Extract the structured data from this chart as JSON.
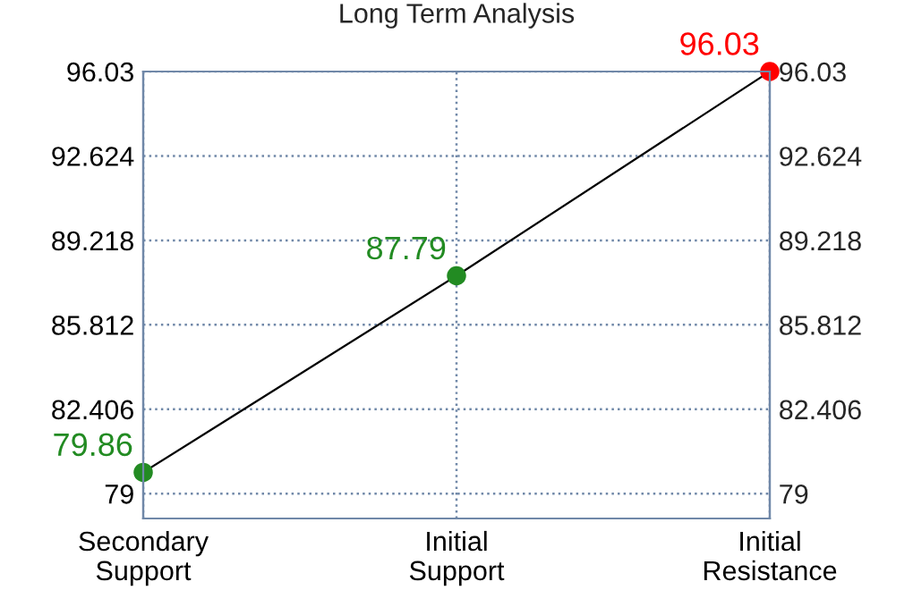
{
  "chart_data": {
    "type": "line",
    "title": "Long Term Analysis",
    "categories": [
      "Secondary\nSupport",
      "Initial\nSupport",
      "Initial\nResistance"
    ],
    "values": [
      79.86,
      87.79,
      96.03
    ],
    "color": "#000000",
    "colors": [
      "#228b22",
      "#228b22",
      "#ff0000"
    ],
    "marker": "circle",
    "data_labels": true,
    "ylim": [
      78,
      96.03
    ],
    "yticks": [
      79,
      82.406,
      85.812,
      89.218,
      92.624,
      96.03
    ],
    "y2lim": [
      78,
      96.03
    ],
    "y2ticks": [
      79,
      82.406,
      85.812,
      89.218,
      92.624,
      96.03
    ],
    "grid": true
  }
}
